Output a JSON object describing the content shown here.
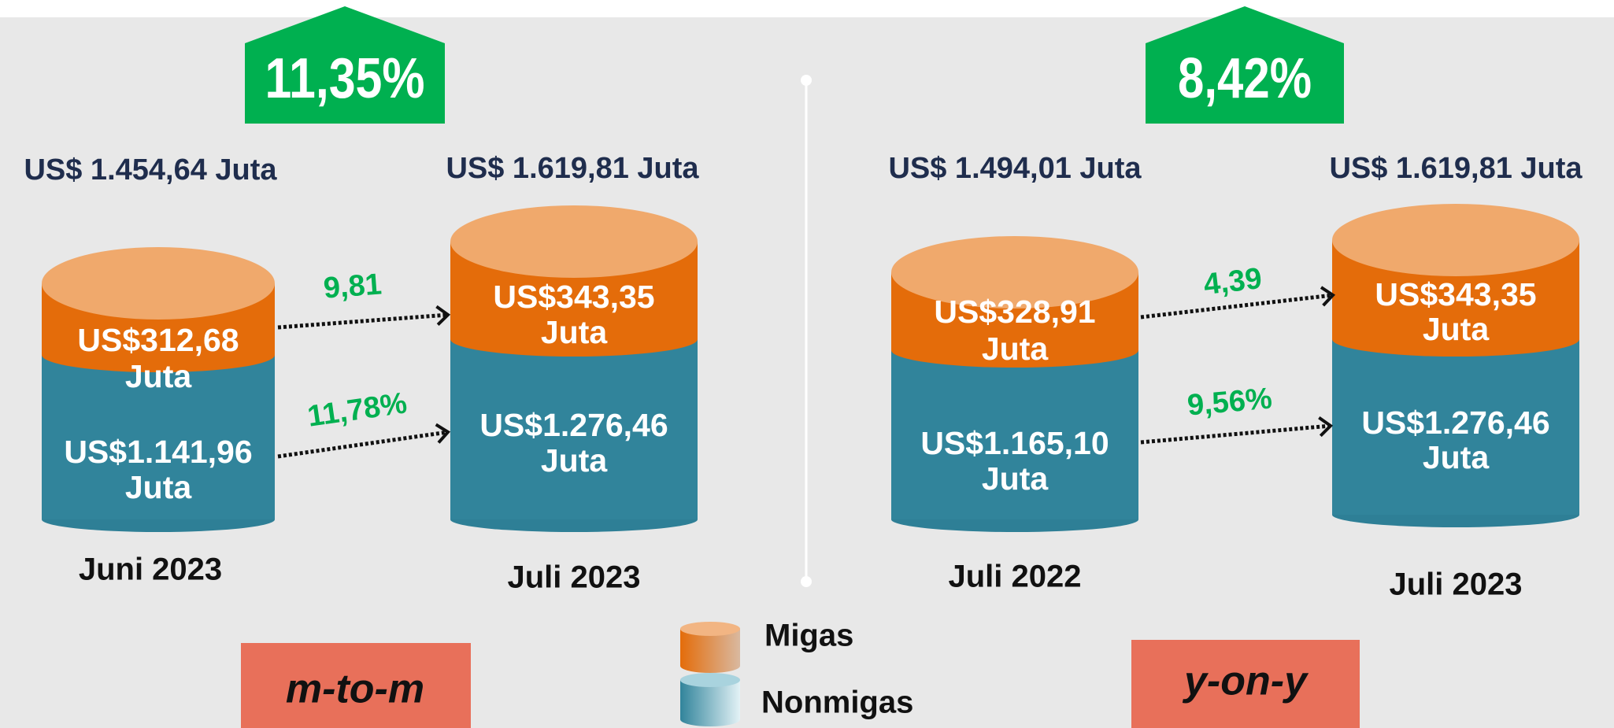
{
  "panels": [
    {
      "change": "11,35%",
      "mode": "m-to-m",
      "bars": [
        {
          "total": "US$ 1.454,64 Juta",
          "migas": [
            "US$312,68",
            "Juta"
          ],
          "nonmigas": [
            "US$1.141,96",
            "Juta"
          ],
          "period": "Juni 2023"
        },
        {
          "total": "US$ 1.619,81 Juta",
          "migas": [
            "US$343,35",
            "Juta"
          ],
          "nonmigas": [
            "US$1.276,46",
            "Juta"
          ],
          "period": "Juli 2023"
        }
      ],
      "migas_change": "9,81",
      "nonmigas_change": "11,78%"
    },
    {
      "change": "8,42%",
      "mode": "y-on-y",
      "bars": [
        {
          "total": "US$ 1.494,01 Juta",
          "migas": [
            "US$328,91",
            "Juta"
          ],
          "nonmigas": [
            "US$1.165,10",
            "Juta"
          ],
          "period": "Juli 2022"
        },
        {
          "total": "US$ 1.619,81 Juta",
          "migas": [
            "US$343,35",
            "Juta"
          ],
          "nonmigas": [
            "US$1.276,46",
            "Juta"
          ],
          "period": "Juli 2023"
        }
      ],
      "migas_change": "4,39",
      "nonmigas_change": "9,56%"
    }
  ],
  "legend": {
    "migas": "Migas",
    "nonmigas": "Nonmigas"
  }
}
